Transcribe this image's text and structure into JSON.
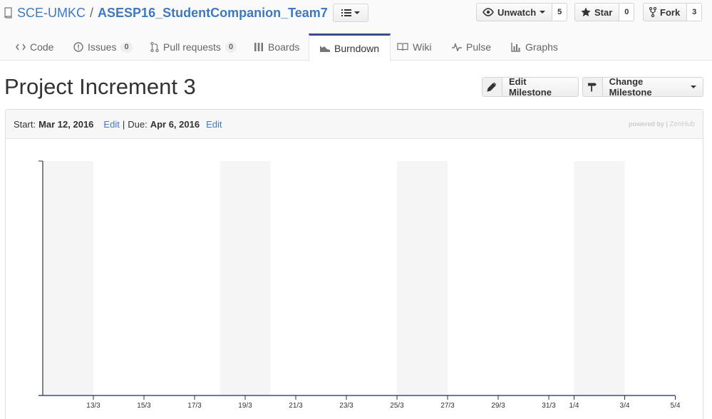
{
  "repo": {
    "owner": "SCE-UMKC",
    "separator": "/",
    "name": "ASESP16_StudentCompanion_Team7"
  },
  "social": {
    "watch": {
      "label": "Unwatch",
      "count": "5"
    },
    "star": {
      "label": "Star",
      "count": "0"
    },
    "fork": {
      "label": "Fork",
      "count": "3"
    }
  },
  "tabs": [
    {
      "label": "Code",
      "icon": "code-icon"
    },
    {
      "label": "Issues",
      "icon": "issue-icon",
      "count": "0"
    },
    {
      "label": "Pull requests",
      "icon": "pull-request-icon",
      "count": "0"
    },
    {
      "label": "Boards",
      "icon": "boards-icon"
    },
    {
      "label": "Burndown",
      "icon": "burndown-icon",
      "selected": true
    },
    {
      "label": "Wiki",
      "icon": "book-icon"
    },
    {
      "label": "Pulse",
      "icon": "pulse-icon"
    },
    {
      "label": "Graphs",
      "icon": "graph-icon"
    }
  ],
  "page": {
    "title": "Project Increment 3",
    "edit_milestone": "Edit Milestone",
    "change_milestone": "Change Milestone"
  },
  "milestone": {
    "start_label": "Start:",
    "start_date": "Mar 12, 2016",
    "edit_label": "Edit",
    "separator": "|",
    "due_label": "Due:",
    "due_date": "Apr 6, 2016",
    "edit_label_2": "Edit",
    "powered_by": "powered by |",
    "zenhub": "ZenHub"
  },
  "colors": {
    "link": "#4078c0",
    "axis": "#3b4c8c",
    "weekend": "#f5f5f5",
    "selected_tab_border": "#3b4c8c"
  },
  "chart_data": {
    "type": "line",
    "x_ticks": [
      "13/3",
      "15/3",
      "17/3",
      "19/3",
      "21/3",
      "23/3",
      "25/3",
      "27/3",
      "29/3",
      "31/3",
      "1/4",
      "3/4",
      "5/4"
    ],
    "x_range": [
      "2016-03-12",
      "2016-04-06"
    ],
    "weekend_bands": [
      [
        "2016-03-12",
        "2016-03-13"
      ],
      [
        "2016-03-19",
        "2016-03-20"
      ],
      [
        "2016-03-26",
        "2016-03-27"
      ],
      [
        "2016-04-02",
        "2016-04-03"
      ]
    ],
    "series": []
  }
}
